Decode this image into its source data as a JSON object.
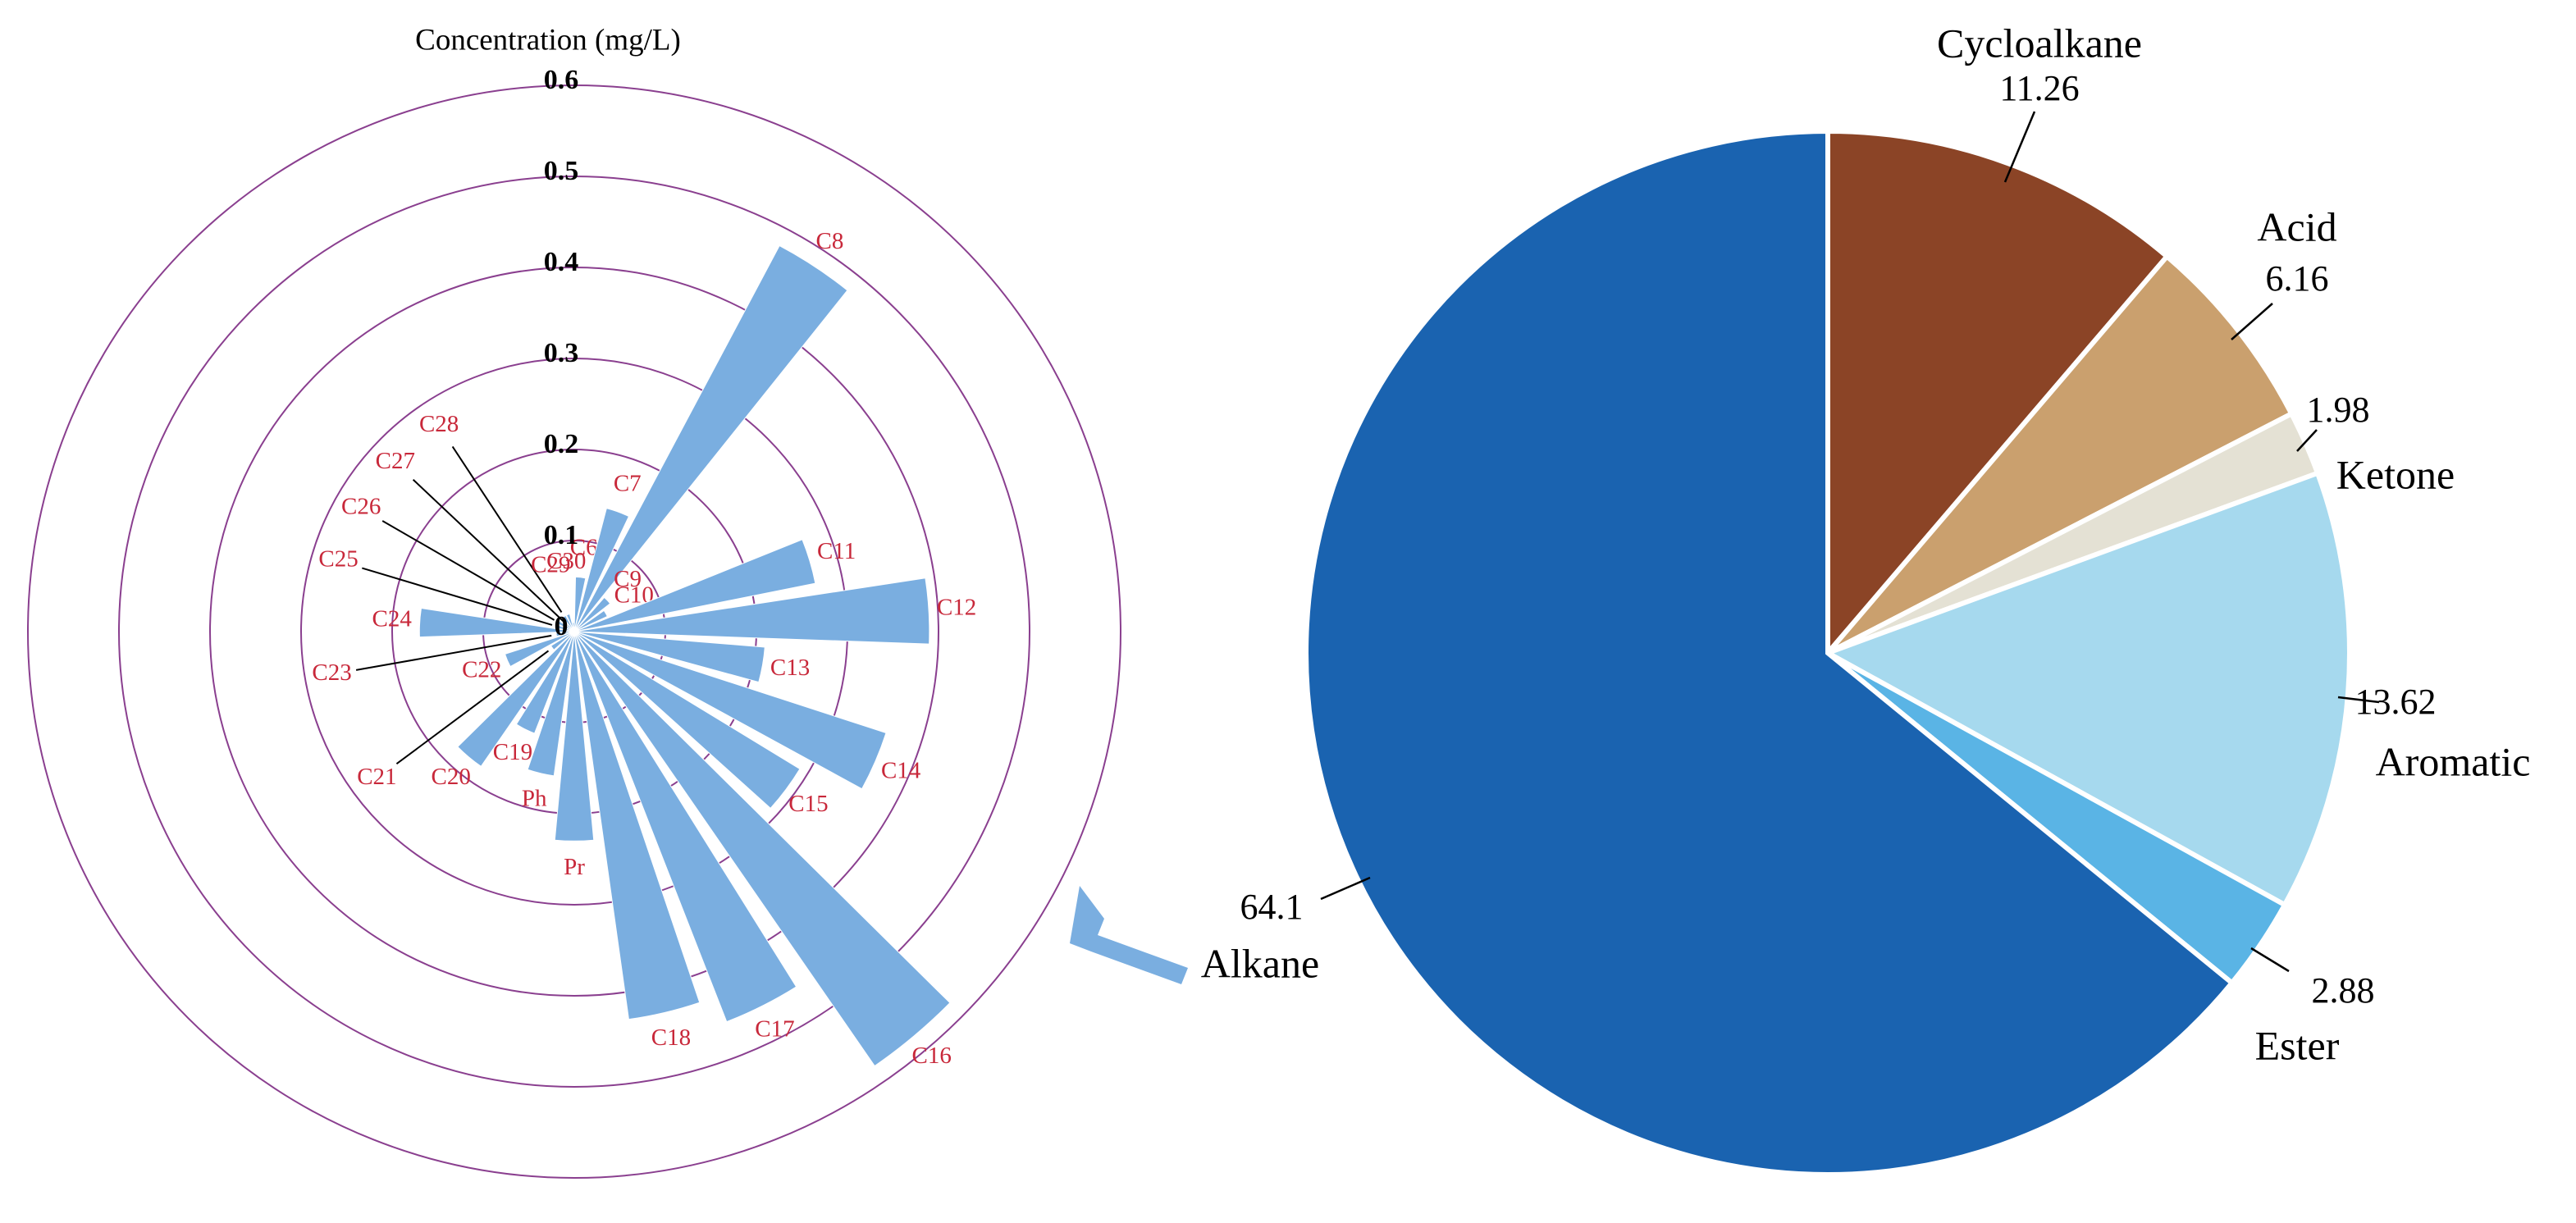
{
  "chart_data": [
    {
      "type": "polar-bar",
      "title": "Concentration (mg/L)",
      "categories": [
        "C6",
        "C7",
        "C8",
        "C9",
        "C10",
        "C11",
        "C12",
        "C13",
        "C14",
        "C15",
        "C16",
        "C17",
        "C18",
        "Pr",
        "Ph",
        "C19",
        "C20",
        "C21",
        "C22",
        "C23",
        "C24",
        "C25",
        "C26",
        "C27",
        "C28",
        "C29",
        "C30"
      ],
      "values": [
        0.06,
        0.14,
        0.48,
        0.05,
        0.04,
        0.27,
        0.39,
        0.21,
        0.36,
        0.29,
        0.58,
        0.46,
        0.43,
        0.23,
        0.16,
        0.12,
        0.18,
        0.03,
        0.08,
        0.02,
        0.17,
        0.02,
        0.02,
        0.01,
        0.02,
        0.02,
        0.01
      ],
      "color": "#7aaee0",
      "ylim": [
        0,
        0.6
      ],
      "yticks": [
        0,
        0.1,
        0.2,
        0.3,
        0.4,
        0.5,
        0.6
      ]
    },
    {
      "type": "pie",
      "categories": [
        "Cycloalkane",
        "Acid",
        "Ketone",
        "Aromatic",
        "Ester",
        "Alkane"
      ],
      "values": [
        11.26,
        6.16,
        1.98,
        13.62,
        2.88,
        64.1
      ],
      "colors": [
        "#8b4426",
        "#caa06e",
        "#e4e1d4",
        "#a6d9ee",
        "#5ab4e5",
        "#1a63b0"
      ]
    }
  ]
}
